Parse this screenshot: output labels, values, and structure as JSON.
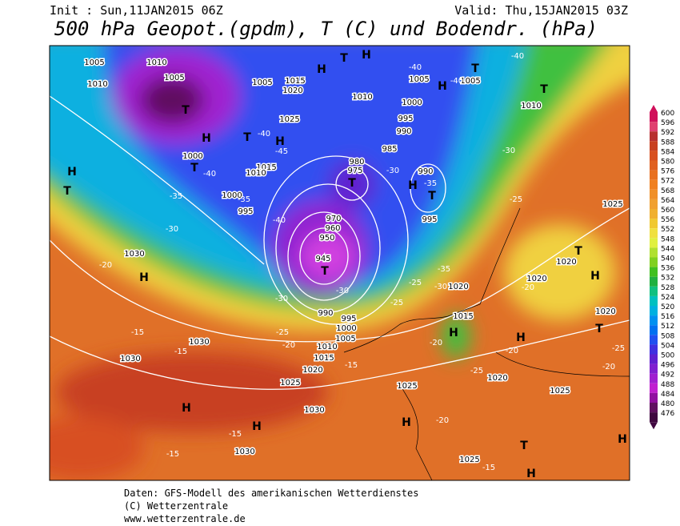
{
  "header": {
    "init": "Init : Sun,11JAN2015 06Z",
    "valid": "Valid: Thu,15JAN2015 03Z",
    "title": "500 hPa Geopot.(gpdm), T (C) und Bodendr. (hPa)"
  },
  "legend": {
    "levels": [
      600,
      596,
      592,
      588,
      584,
      580,
      576,
      572,
      568,
      564,
      560,
      556,
      552,
      548,
      544,
      540,
      536,
      532,
      528,
      524,
      520,
      516,
      512,
      508,
      504,
      500,
      496,
      492,
      488,
      484,
      480,
      476
    ],
    "colors": [
      "#d0105a",
      "#e04070",
      "#b83030",
      "#c84020",
      "#d85020",
      "#e06020",
      "#e87020",
      "#f08020",
      "#f09028",
      "#f0a030",
      "#f0b030",
      "#f0c830",
      "#f0e040",
      "#e0f040",
      "#b0e030",
      "#80d020",
      "#40c020",
      "#20b040",
      "#10c080",
      "#00c0c0",
      "#00b0e0",
      "#0090f0",
      "#0070f0",
      "#2050f0",
      "#4030e0",
      "#6020d0",
      "#8020d0",
      "#a020d0",
      "#c020d0",
      "#9010a0",
      "#601060",
      "#400840"
    ]
  },
  "map": {
    "pressure_labels": [
      1005,
      1010,
      1010,
      1005,
      1005,
      1015,
      1020,
      1010,
      1005,
      1005,
      1010,
      1000,
      995,
      990,
      985,
      980,
      975,
      990,
      995,
      1025,
      1015,
      1010,
      1000,
      995,
      1000,
      970,
      960,
      950,
      945,
      1030,
      1030,
      1030,
      1025,
      1030,
      1030,
      1020,
      1015,
      1010,
      1005,
      1000,
      995,
      990,
      1025,
      1020,
      1020,
      1020,
      1015,
      1020,
      1020,
      1025,
      1025,
      1025
    ],
    "temperature_labels": [
      -40,
      -40,
      -40,
      -40,
      -45,
      -40,
      -35,
      -40,
      -35,
      -30,
      -20,
      -15,
      -15,
      -15,
      -15,
      -25,
      -20,
      -30,
      -30,
      -25,
      -25,
      -35,
      -30,
      -30,
      -35,
      -30,
      -25,
      -20,
      -20,
      -25,
      -20,
      -25,
      -20,
      -20,
      -15,
      -15
    ],
    "markers": [
      "H",
      "T",
      "H",
      "T",
      "H",
      "T",
      "T",
      "H",
      "H",
      "T",
      "T",
      "H",
      "T",
      "H",
      "T",
      "T",
      "H",
      "H",
      "T",
      "T",
      "H",
      "H",
      "H",
      "H",
      "H",
      "T",
      "H",
      "H",
      "T"
    ]
  },
  "footer": {
    "line1": "Daten: GFS-Modell des amerikanischen Wetterdienstes",
    "line2": "(C) Wetterzentrale",
    "line3": "www.wetterzentrale.de"
  }
}
